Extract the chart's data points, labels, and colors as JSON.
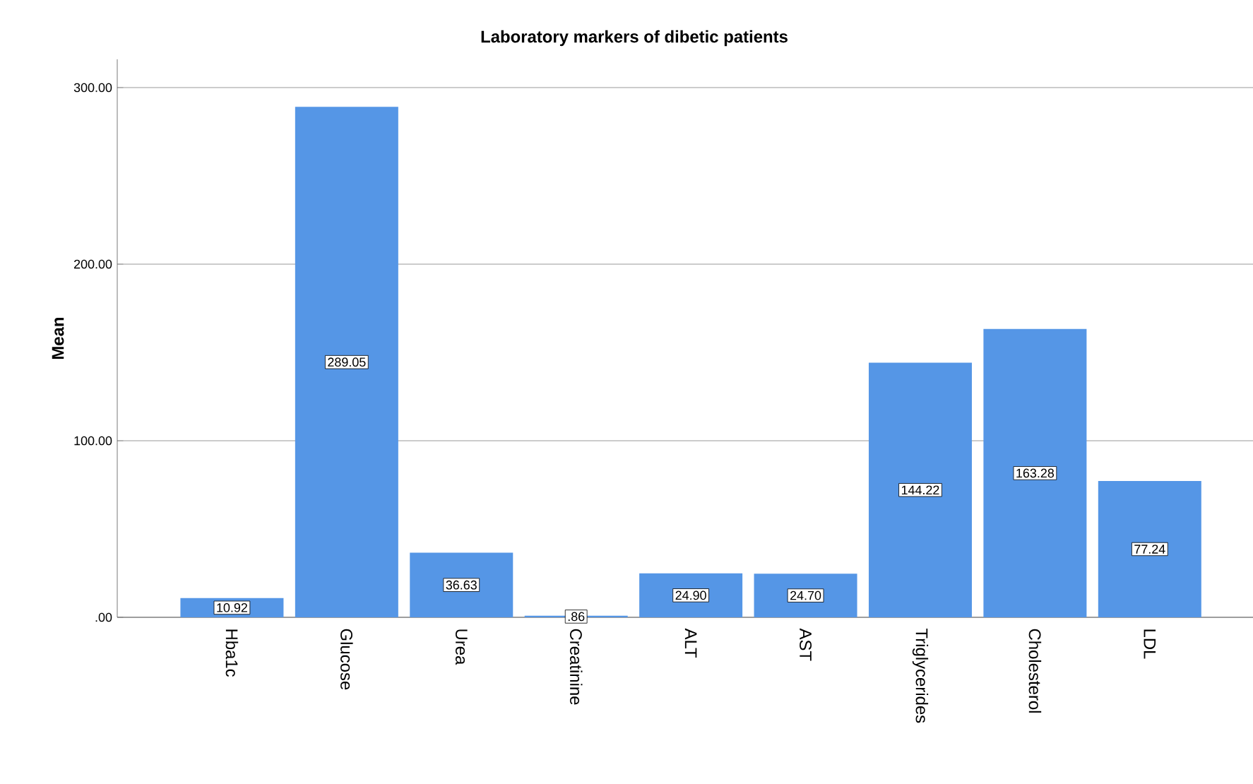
{
  "chart_data": {
    "type": "bar",
    "title": "Laboratory markers of dibetic patients",
    "ylabel": "Mean",
    "categories": [
      "Hba1c",
      "Glucose",
      "Urea",
      "Creatinine",
      "ALT",
      "AST",
      "Triglycerides",
      "Cholesterol",
      "LDL"
    ],
    "values": [
      10.92,
      289.05,
      36.63,
      0.86,
      24.9,
      24.7,
      144.22,
      163.28,
      77.24
    ],
    "value_labels": [
      "10.92",
      "289.05",
      "36.63",
      ".86",
      "24.90",
      "24.70",
      "144.22",
      "163.28",
      "77.24"
    ],
    "color": "#5596e6",
    "ylim": [
      0,
      316
    ],
    "yticks": [
      {
        "value": 0,
        "label": ".00"
      },
      {
        "value": 100,
        "label": "100.00"
      },
      {
        "value": 200,
        "label": "200.00"
      },
      {
        "value": 300,
        "label": "300.00"
      }
    ],
    "grid": "y"
  }
}
